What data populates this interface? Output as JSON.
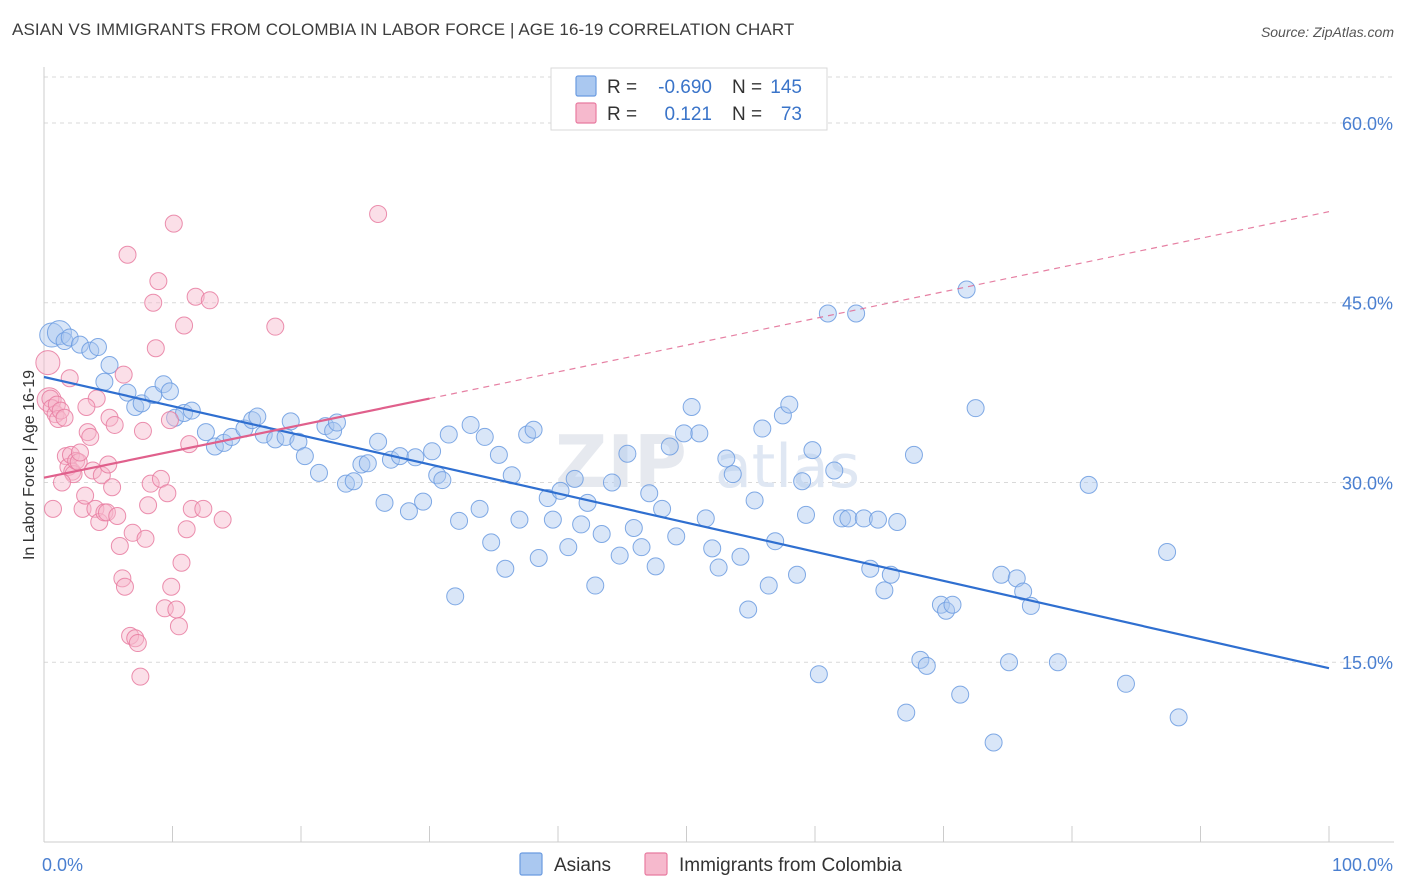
{
  "title": "ASIAN VS IMMIGRANTS FROM COLOMBIA IN LABOR FORCE | AGE 16-19 CORRELATION CHART",
  "source": "Source: ZipAtlas.com",
  "watermark": {
    "a": "ZIP",
    "b": "atlas"
  },
  "colors": {
    "asian": "#6b9be0",
    "asian_fill": "#aac8f0",
    "asian_line": "#2f6fd0",
    "colombia": "#e87ba0",
    "colombia_fill": "#f6b9cd",
    "colombia_line": "#e0608c",
    "axis_label": "#4a7fd0",
    "grid": "#d9d9d9"
  },
  "legend": {
    "row1": {
      "r_label": "R =",
      "r_value": "-0.690",
      "n_label": "N =",
      "n_value": "145"
    },
    "row2": {
      "r_label": "R =",
      "r_value": "0.121",
      "n_label": "N =",
      "n_value": "73"
    }
  },
  "chart_data": {
    "type": "scatter",
    "xlabel": "",
    "ylabel": "In Labor Force | Age 16-19",
    "xlim": [
      0,
      100
    ],
    "ylim": [
      0,
      64
    ],
    "x_tick_labels": {
      "0": "0.0%",
      "100": "100.0%"
    },
    "y_tick_labels": {
      "15": "15.0%",
      "30": "30.0%",
      "45": "45.0%",
      "60": "60.0%"
    },
    "legend_position": "top-center",
    "bottom_legend": [
      "Asians",
      "Immigrants from Colombia"
    ],
    "series": [
      {
        "name": "Asians",
        "trend": {
          "x": [
            0,
            100
          ],
          "y": [
            38.8,
            14.5
          ]
        },
        "points": [
          [
            0.6,
            42.3
          ],
          [
            1.2,
            42.5
          ],
          [
            1.6,
            41.8
          ],
          [
            2.0,
            42.1
          ],
          [
            2.8,
            41.5
          ],
          [
            3.6,
            41.0
          ],
          [
            4.2,
            41.3
          ],
          [
            5.1,
            39.8
          ],
          [
            4.7,
            38.4
          ],
          [
            6.5,
            37.5
          ],
          [
            7.1,
            36.3
          ],
          [
            7.6,
            36.6
          ],
          [
            8.5,
            37.3
          ],
          [
            9.3,
            38.2
          ],
          [
            9.8,
            37.6
          ],
          [
            10.2,
            35.4
          ],
          [
            10.9,
            35.8
          ],
          [
            11.5,
            36.0
          ],
          [
            12.6,
            34.2
          ],
          [
            13.3,
            33.0
          ],
          [
            14.0,
            33.3
          ],
          [
            14.6,
            33.8
          ],
          [
            15.6,
            34.5
          ],
          [
            16.2,
            35.2
          ],
          [
            16.6,
            35.5
          ],
          [
            17.1,
            34.0
          ],
          [
            18.0,
            33.6
          ],
          [
            18.8,
            33.8
          ],
          [
            19.2,
            35.1
          ],
          [
            19.8,
            33.4
          ],
          [
            20.3,
            32.2
          ],
          [
            21.4,
            30.8
          ],
          [
            21.9,
            34.7
          ],
          [
            22.5,
            34.3
          ],
          [
            22.8,
            35.0
          ],
          [
            23.5,
            29.9
          ],
          [
            24.1,
            30.1
          ],
          [
            24.7,
            31.5
          ],
          [
            25.2,
            31.6
          ],
          [
            26.0,
            33.4
          ],
          [
            26.5,
            28.3
          ],
          [
            27.0,
            31.9
          ],
          [
            27.7,
            32.2
          ],
          [
            28.4,
            27.6
          ],
          [
            28.9,
            32.1
          ],
          [
            29.5,
            28.4
          ],
          [
            30.2,
            32.6
          ],
          [
            30.6,
            30.6
          ],
          [
            31.0,
            30.2
          ],
          [
            31.5,
            34.0
          ],
          [
            32.0,
            20.5
          ],
          [
            32.3,
            26.8
          ],
          [
            33.2,
            34.8
          ],
          [
            33.9,
            27.8
          ],
          [
            34.3,
            33.8
          ],
          [
            34.8,
            25.0
          ],
          [
            35.4,
            32.3
          ],
          [
            35.9,
            22.8
          ],
          [
            36.4,
            30.6
          ],
          [
            37.0,
            26.9
          ],
          [
            37.6,
            34.0
          ],
          [
            38.1,
            34.4
          ],
          [
            38.5,
            23.7
          ],
          [
            39.2,
            28.7
          ],
          [
            39.6,
            26.9
          ],
          [
            40.2,
            29.3
          ],
          [
            40.8,
            24.6
          ],
          [
            41.3,
            30.3
          ],
          [
            41.8,
            26.5
          ],
          [
            42.3,
            28.3
          ],
          [
            42.9,
            21.4
          ],
          [
            43.4,
            25.7
          ],
          [
            44.2,
            30.0
          ],
          [
            44.8,
            23.9
          ],
          [
            45.4,
            32.4
          ],
          [
            45.9,
            26.2
          ],
          [
            46.5,
            24.6
          ],
          [
            47.1,
            29.1
          ],
          [
            47.6,
            23.0
          ],
          [
            48.1,
            27.8
          ],
          [
            48.7,
            33.0
          ],
          [
            49.2,
            25.5
          ],
          [
            49.8,
            34.1
          ],
          [
            50.4,
            36.3
          ],
          [
            51.0,
            34.1
          ],
          [
            51.5,
            27.0
          ],
          [
            52.0,
            24.5
          ],
          [
            52.5,
            22.9
          ],
          [
            53.1,
            32.0
          ],
          [
            53.6,
            30.7
          ],
          [
            54.2,
            23.8
          ],
          [
            54.8,
            19.4
          ],
          [
            55.3,
            28.5
          ],
          [
            55.9,
            34.5
          ],
          [
            56.4,
            21.4
          ],
          [
            56.9,
            25.1
          ],
          [
            57.5,
            35.6
          ],
          [
            58.0,
            36.5
          ],
          [
            58.6,
            22.3
          ],
          [
            59.0,
            30.1
          ],
          [
            59.3,
            27.3
          ],
          [
            59.8,
            32.7
          ],
          [
            60.3,
            14.0
          ],
          [
            61.0,
            44.1
          ],
          [
            61.5,
            31.0
          ],
          [
            62.1,
            27.0
          ],
          [
            62.6,
            27.0
          ],
          [
            63.2,
            44.1
          ],
          [
            63.8,
            27.0
          ],
          [
            64.3,
            22.8
          ],
          [
            64.9,
            26.9
          ],
          [
            65.4,
            21.0
          ],
          [
            65.9,
            22.3
          ],
          [
            66.4,
            26.7
          ],
          [
            67.1,
            10.8
          ],
          [
            67.7,
            32.3
          ],
          [
            68.2,
            15.2
          ],
          [
            68.7,
            14.7
          ],
          [
            69.8,
            19.8
          ],
          [
            70.2,
            19.3
          ],
          [
            70.7,
            19.8
          ],
          [
            71.3,
            12.3
          ],
          [
            71.8,
            46.1
          ],
          [
            72.5,
            36.2
          ],
          [
            73.9,
            8.3
          ],
          [
            74.5,
            22.3
          ],
          [
            75.1,
            15.0
          ],
          [
            75.7,
            22.0
          ],
          [
            76.2,
            20.9
          ],
          [
            76.8,
            19.7
          ],
          [
            78.9,
            15.0
          ],
          [
            81.3,
            29.8
          ],
          [
            84.2,
            13.2
          ],
          [
            87.4,
            24.2
          ],
          [
            88.3,
            10.4
          ]
        ]
      },
      {
        "name": "Immigrants from Colombia",
        "trend": {
          "x": [
            0,
            30
          ],
          "y": [
            30.4,
            37.0
          ]
        },
        "dashed_extension": {
          "x": [
            30,
            100
          ],
          "y": [
            37.0,
            52.6
          ]
        },
        "points": [
          [
            0.3,
            40.0
          ],
          [
            0.4,
            36.9
          ],
          [
            0.5,
            37.0
          ],
          [
            0.6,
            36.2
          ],
          [
            0.7,
            27.8
          ],
          [
            0.9,
            35.7
          ],
          [
            1.0,
            36.5
          ],
          [
            1.1,
            35.3
          ],
          [
            1.3,
            36.0
          ],
          [
            1.6,
            35.4
          ],
          [
            1.7,
            32.2
          ],
          [
            1.9,
            31.3
          ],
          [
            2.1,
            32.3
          ],
          [
            2.2,
            30.9
          ],
          [
            2.3,
            30.7
          ],
          [
            2.5,
            31.8
          ],
          [
            2.7,
            31.7
          ],
          [
            2.8,
            32.5
          ],
          [
            3.0,
            27.8
          ],
          [
            3.2,
            28.9
          ],
          [
            3.4,
            34.2
          ],
          [
            3.6,
            33.8
          ],
          [
            3.8,
            31.0
          ],
          [
            4.0,
            27.8
          ],
          [
            4.1,
            37.0
          ],
          [
            4.3,
            26.7
          ],
          [
            4.5,
            30.6
          ],
          [
            4.7,
            27.5
          ],
          [
            4.9,
            27.5
          ],
          [
            5.1,
            35.4
          ],
          [
            5.3,
            29.6
          ],
          [
            5.5,
            34.8
          ],
          [
            5.7,
            27.2
          ],
          [
            5.9,
            24.7
          ],
          [
            6.1,
            22.0
          ],
          [
            6.3,
            21.3
          ],
          [
            6.5,
            49.0
          ],
          [
            6.7,
            17.2
          ],
          [
            6.9,
            25.8
          ],
          [
            7.1,
            17.0
          ],
          [
            7.3,
            16.6
          ],
          [
            7.5,
            13.8
          ],
          [
            7.7,
            34.3
          ],
          [
            7.9,
            25.3
          ],
          [
            8.1,
            28.1
          ],
          [
            8.3,
            29.9
          ],
          [
            8.5,
            45.0
          ],
          [
            8.7,
            41.2
          ],
          [
            8.9,
            46.8
          ],
          [
            9.1,
            30.3
          ],
          [
            9.4,
            19.5
          ],
          [
            9.6,
            29.1
          ],
          [
            9.9,
            21.3
          ],
          [
            10.1,
            51.6
          ],
          [
            10.3,
            19.4
          ],
          [
            10.5,
            18.0
          ],
          [
            10.7,
            23.3
          ],
          [
            10.9,
            43.1
          ],
          [
            11.1,
            26.1
          ],
          [
            11.3,
            33.2
          ],
          [
            11.5,
            27.8
          ],
          [
            11.8,
            45.5
          ],
          [
            12.4,
            27.8
          ],
          [
            12.9,
            45.2
          ],
          [
            13.9,
            26.9
          ],
          [
            18.0,
            43.0
          ],
          [
            26.0,
            52.4
          ],
          [
            3.3,
            36.3
          ],
          [
            2.0,
            38.7
          ],
          [
            6.2,
            39.0
          ],
          [
            9.8,
            35.2
          ],
          [
            5.0,
            31.5
          ],
          [
            1.4,
            30.0
          ]
        ]
      }
    ]
  }
}
